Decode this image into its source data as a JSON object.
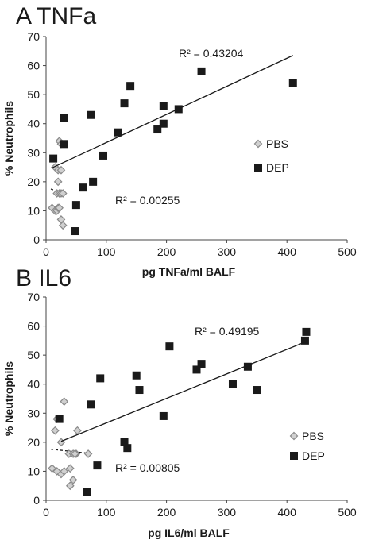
{
  "chart_data": [
    {
      "type": "scatter",
      "title": "A  TNFa",
      "xlabel": "pg TNFa/ml BALF",
      "ylabel": "% Neutrophils",
      "xlim": [
        0,
        500
      ],
      "ylim": [
        0,
        70
      ],
      "xticks": [
        "0",
        "100",
        "200",
        "300",
        "400",
        "500"
      ],
      "yticks": [
        "0",
        "10",
        "20",
        "30",
        "40",
        "50",
        "60",
        "70"
      ],
      "legend_position": "right",
      "series": [
        {
          "name": "PBS",
          "marker": "diamond",
          "color": "#b3b3b3",
          "x": [
            10,
            15,
            18,
            20,
            22,
            25,
            28,
            18,
            22,
            25,
            15,
            20,
            25,
            28,
            22,
            25,
            20
          ],
          "y": [
            11,
            10,
            10,
            11,
            11,
            7,
            5,
            16,
            16,
            16,
            25,
            24,
            24,
            16,
            34,
            33,
            20
          ],
          "trendline": {
            "x1": 8,
            "y1": 17.5,
            "x2": 28,
            "y2": 16.0,
            "style": "dashed"
          },
          "r2_label": "R² = 0.00255"
        },
        {
          "name": "DEP",
          "marker": "square",
          "color": "#1a1a1a",
          "x": [
            12,
            30,
            30,
            48,
            50,
            62,
            75,
            78,
            95,
            120,
            130,
            140,
            185,
            195,
            195,
            220,
            258,
            410
          ],
          "y": [
            28,
            33,
            42,
            3,
            12,
            18,
            43,
            20,
            29,
            37,
            47,
            53,
            38,
            46,
            40,
            45,
            58,
            54
          ],
          "trendline": {
            "x1": 10,
            "y1": 24.8,
            "x2": 410,
            "y2": 63.5,
            "style": "solid"
          },
          "r2_label": "R² = 0.43204"
        }
      ]
    },
    {
      "type": "scatter",
      "title": "B  IL6",
      "xlabel": "pg IL6/ml BALF",
      "ylabel": "% Neutrophils",
      "xlim": [
        0,
        500
      ],
      "ylim": [
        0,
        70
      ],
      "xticks": [
        "0",
        "100",
        "200",
        "300",
        "400",
        "500"
      ],
      "yticks": [
        "0",
        "10",
        "20",
        "30",
        "40",
        "50",
        "60",
        "70"
      ],
      "legend_position": "right",
      "series": [
        {
          "name": "PBS",
          "marker": "diamond",
          "color": "#b3b3b3",
          "x": [
            10,
            18,
            25,
            30,
            40,
            45,
            40,
            50,
            38,
            45,
            48,
            70,
            15,
            25,
            18,
            30,
            52
          ],
          "y": [
            11,
            10,
            9,
            10,
            5,
            7,
            11,
            16,
            16,
            16,
            16,
            16,
            24,
            20,
            28,
            34,
            24
          ],
          "trendline": {
            "x1": 8,
            "y1": 17.6,
            "x2": 70,
            "y2": 16.2,
            "style": "dashed"
          },
          "r2_label": "R² = 0.00805"
        },
        {
          "name": "DEP",
          "marker": "square",
          "color": "#1a1a1a",
          "x": [
            22,
            68,
            75,
            85,
            90,
            130,
            135,
            150,
            155,
            195,
            205,
            250,
            258,
            310,
            335,
            350,
            430,
            432
          ],
          "y": [
            28,
            3,
            33,
            12,
            42,
            20,
            18,
            43,
            38,
            29,
            53,
            45,
            47,
            40,
            46,
            38,
            55,
            58
          ],
          "trendline": {
            "x1": 25,
            "y1": 20.3,
            "x2": 430,
            "y2": 54.5,
            "style": "solid"
          },
          "r2_label": "R² = 0.49195"
        }
      ]
    }
  ]
}
